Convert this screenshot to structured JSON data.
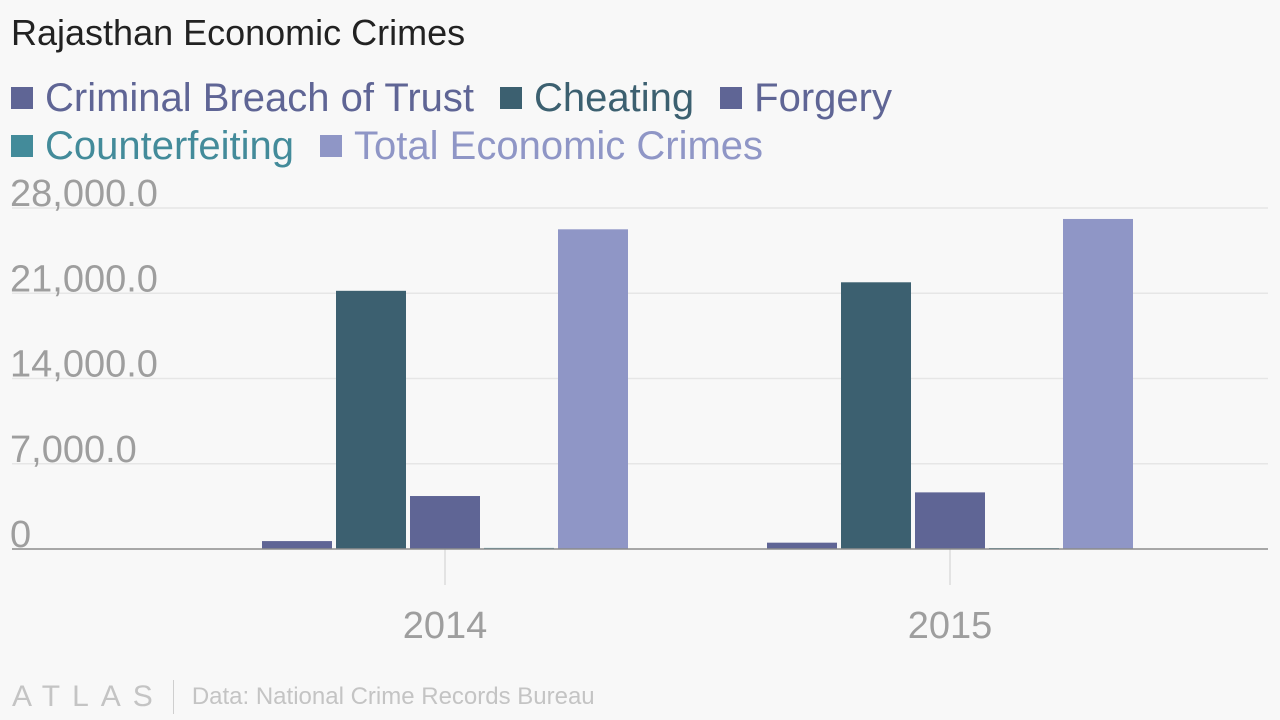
{
  "chart_data": {
    "type": "bar",
    "title": "Rajasthan Economic Crimes",
    "categories": [
      "2014",
      "2015"
    ],
    "series": [
      {
        "name": "Criminal Breach of Trust",
        "color": "#5f6595",
        "values": [
          650,
          520
        ]
      },
      {
        "name": "Cheating",
        "color": "#3c6070",
        "values": [
          21200,
          21900
        ]
      },
      {
        "name": "Forgery",
        "color": "#5f6595",
        "values": [
          4350,
          4650
        ]
      },
      {
        "name": "Counterfeiting",
        "color": "#438b9a",
        "values": [
          90,
          80
        ]
      },
      {
        "name": "Total Economic Crimes",
        "color": "#8f96c6",
        "values": [
          26250,
          27100
        ]
      }
    ],
    "yticks": [
      "0",
      "7,000.0",
      "14,000.0",
      "21,000.0",
      "28,000.0"
    ],
    "ytick_values": [
      0,
      7000,
      14000,
      21000,
      28000
    ],
    "ylim": [
      0,
      28000
    ],
    "grid": true,
    "legend_position": "top-left"
  },
  "footer": {
    "brand": "ATLAS",
    "source": "Data: National Crime Records Bureau"
  }
}
